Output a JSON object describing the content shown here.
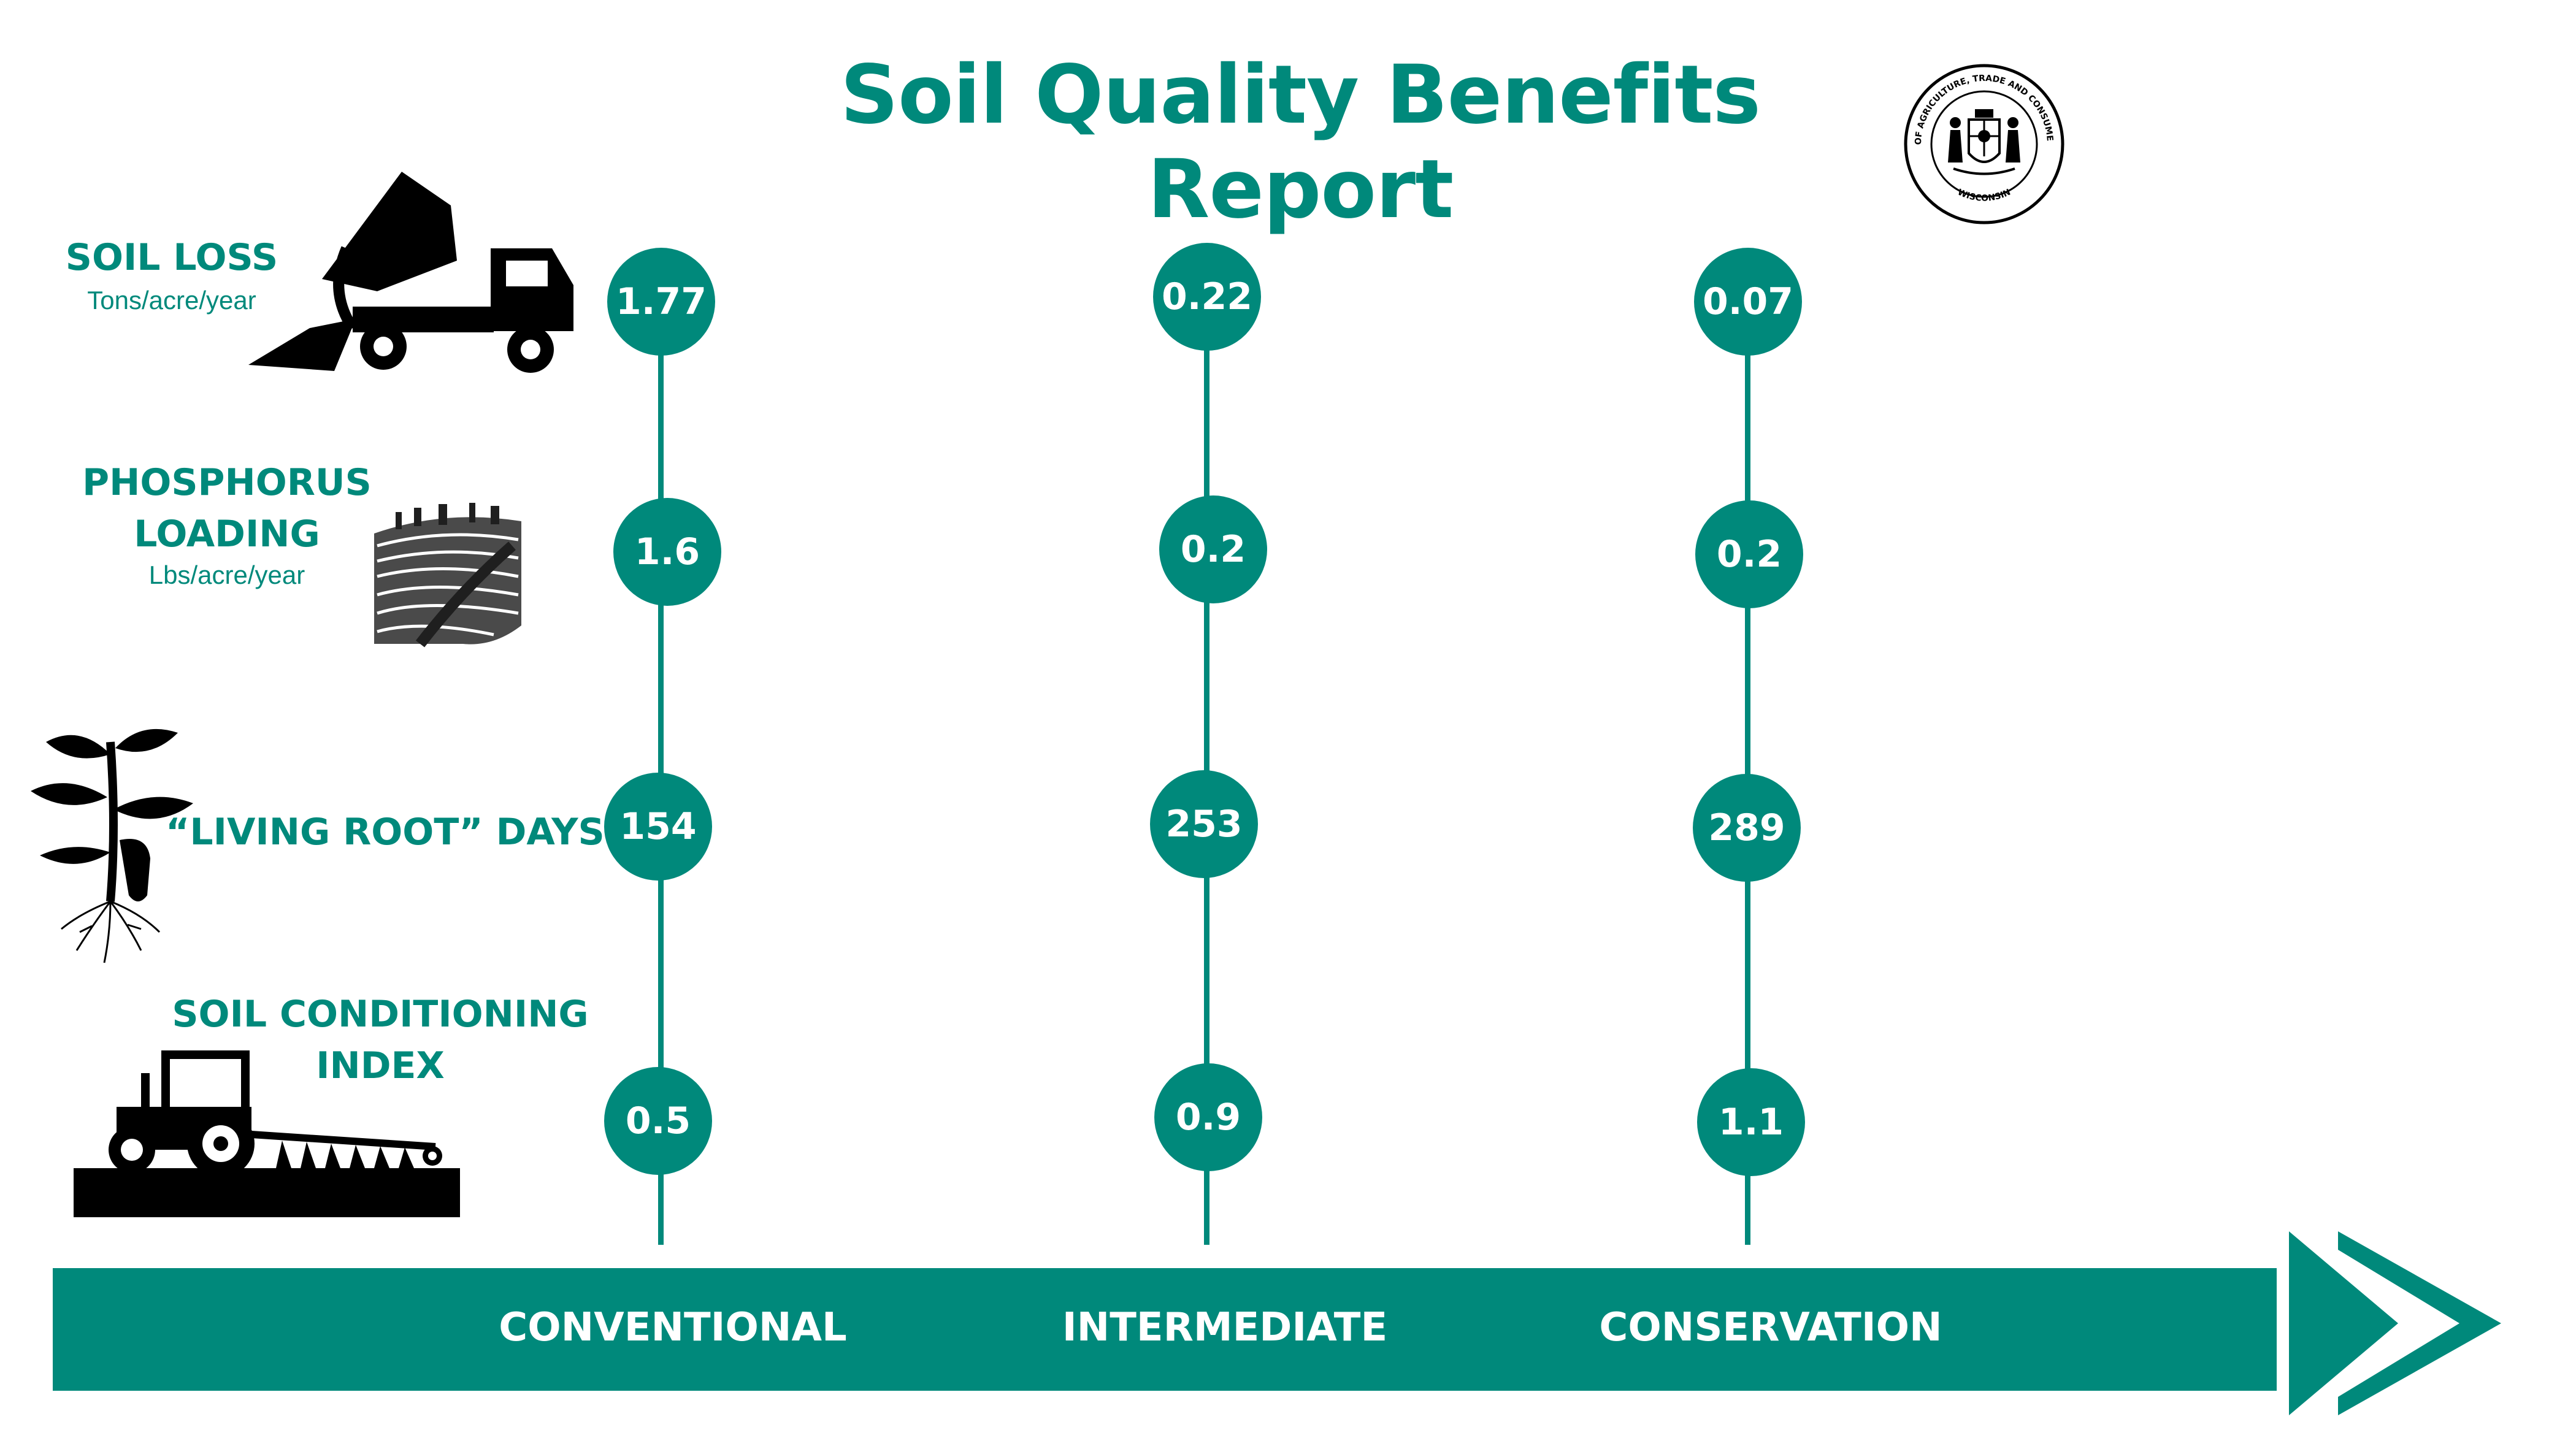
{
  "title": "Soil Quality Benefits Report",
  "seal": {
    "ring_text": "DEPARTMENT OF AGRICULTURE, TRADE AND CONSUMER PROTECTION",
    "bottom_text": "WISCONSIN"
  },
  "colors": {
    "accent": "#00897b",
    "text_on_accent": "#ffffff",
    "icon": "#000000"
  },
  "chart_data": {
    "type": "table",
    "categories": [
      "CONVENTIONAL",
      "INTERMEDIATE",
      "CONSERVATION"
    ],
    "series": [
      {
        "name": "SOIL LOSS",
        "unit": "Tons/acre/year",
        "values": [
          1.77,
          0.22,
          0.07
        ],
        "display": [
          "1.77",
          "0.22",
          "0.07"
        ],
        "icon": "dump-truck-icon"
      },
      {
        "name": "PHOSPHORUS LOADING",
        "unit": "Lbs/acre/year",
        "values": [
          1.6,
          0.2,
          0.2
        ],
        "display": [
          "1.6",
          "0.2",
          "0.2"
        ],
        "icon": "farm-field-icon"
      },
      {
        "name": "“LIVING ROOT” DAYS",
        "unit": "",
        "values": [
          154,
          253,
          289
        ],
        "display": [
          "154",
          "253",
          "289"
        ],
        "icon": "plant-roots-icon"
      },
      {
        "name": "SOIL CONDITIONING INDEX",
        "unit": "",
        "values": [
          0.5,
          0.9,
          1.1
        ],
        "display": [
          "0.5",
          "0.9",
          "1.1"
        ],
        "icon": "tractor-plow-icon"
      }
    ]
  }
}
